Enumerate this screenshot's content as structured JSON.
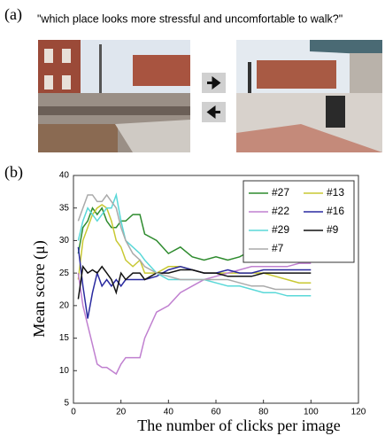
{
  "panel_a": {
    "label": "(a)",
    "question": "\"which place looks more stressful and uncomfortable to walk?\""
  },
  "chart_data": {
    "type": "line",
    "panel_label": "(b)",
    "xlabel": "The number of clicks per image",
    "ylabel": "Mean score (μ)",
    "xlim": [
      0,
      120
    ],
    "xticks": [
      0,
      20,
      40,
      60,
      80,
      100,
      120
    ],
    "ylim": [
      5,
      40
    ],
    "yticks": [
      5,
      10,
      15,
      20,
      25,
      30,
      35,
      40
    ],
    "legend": "upper right",
    "x": [
      2,
      4,
      6,
      8,
      10,
      12,
      14,
      16,
      18,
      20,
      22,
      25,
      28,
      30,
      35,
      40,
      45,
      50,
      55,
      60,
      65,
      70,
      75,
      80,
      85,
      90,
      95,
      100
    ],
    "series": [
      {
        "name": "#27",
        "color": "#2e8b2e",
        "values": [
          28,
          32,
          33,
          35,
          34,
          35,
          33,
          32,
          32,
          33,
          33,
          34,
          34,
          31,
          30,
          28,
          29,
          27.5,
          27,
          27.5,
          27,
          27.5,
          28.5,
          28,
          27.5,
          28,
          27.5,
          27.5
        ]
      },
      {
        "name": "#13",
        "color": "#c8c832",
        "values": [
          24,
          30,
          32,
          34,
          35,
          35.5,
          35,
          33,
          30,
          29,
          27,
          26,
          27,
          25,
          25,
          26,
          26,
          25.5,
          25,
          25,
          25,
          25,
          25,
          25,
          24.5,
          24,
          23.5,
          23.5
        ]
      },
      {
        "name": "#22",
        "color": "#c080d0",
        "values": [
          25,
          20,
          17,
          14,
          11,
          10.5,
          10.5,
          10,
          9.5,
          11,
          12,
          12,
          12,
          15,
          19,
          20,
          22,
          23,
          24,
          24.5,
          25,
          25.5,
          26,
          26,
          26,
          26,
          26.5,
          26.5
        ]
      },
      {
        "name": "#16",
        "color": "#2a2aa0",
        "values": [
          29,
          23,
          18,
          22,
          25,
          23,
          24,
          23,
          24,
          23,
          24,
          24,
          24,
          24,
          24.5,
          25.5,
          26,
          25.5,
          25,
          25,
          25.5,
          25,
          25,
          25.5,
          25.5,
          25.5,
          25.5,
          25.5
        ]
      },
      {
        "name": "#29",
        "color": "#5ad8d8",
        "values": [
          30,
          33,
          35,
          34,
          33,
          34,
          35,
          35,
          37,
          33,
          30,
          29,
          28,
          27,
          25,
          24,
          24,
          24,
          24,
          23.5,
          23,
          23,
          22.5,
          22,
          22,
          21.5,
          21.5,
          21.5
        ]
      },
      {
        "name": "#9",
        "color": "#111111",
        "values": [
          21,
          26,
          25,
          25.5,
          25,
          26,
          25,
          24,
          22,
          25,
          24,
          25,
          25,
          24,
          25,
          25,
          25.5,
          25.5,
          25,
          25,
          24.5,
          24.5,
          24.5,
          25,
          25,
          25,
          25,
          25
        ]
      },
      {
        "name": "#7",
        "color": "#aaaaaa",
        "values": [
          33,
          35,
          37,
          37,
          36,
          36,
          37,
          36,
          35,
          32,
          30,
          28,
          27,
          26,
          25,
          24.5,
          24,
          24,
          24,
          24,
          24,
          23.5,
          23,
          23,
          22.5,
          22.5,
          22.5,
          22.5
        ]
      }
    ]
  }
}
